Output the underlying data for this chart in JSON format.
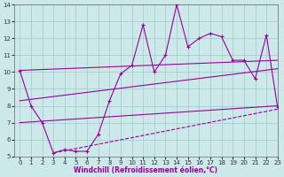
{
  "xlabel": "Windchill (Refroidissement éolien,°C)",
  "background_color": "#cce8e8",
  "line_color": "#990099",
  "xlim": [
    -0.5,
    23
  ],
  "ylim": [
    5,
    14
  ],
  "yticks": [
    5,
    6,
    7,
    8,
    9,
    10,
    11,
    12,
    13,
    14
  ],
  "xticks": [
    0,
    1,
    2,
    3,
    4,
    5,
    6,
    7,
    8,
    9,
    10,
    11,
    12,
    13,
    14,
    15,
    16,
    17,
    18,
    19,
    20,
    21,
    22,
    23
  ],
  "series1_x": [
    0,
    1,
    2,
    3,
    4,
    5,
    6,
    7,
    8,
    9,
    10,
    11,
    12,
    13,
    14,
    15,
    16,
    17,
    18,
    19,
    20,
    21,
    22,
    23
  ],
  "series1_y": [
    10.1,
    8.0,
    7.0,
    5.2,
    5.4,
    5.3,
    5.3,
    6.3,
    8.3,
    9.9,
    10.4,
    12.8,
    10.0,
    11.0,
    14.0,
    11.5,
    12.0,
    12.3,
    12.1,
    10.7,
    10.7,
    9.6,
    12.2,
    7.9
  ],
  "line1_x": [
    0,
    23
  ],
  "line1_y": [
    10.1,
    10.7
  ],
  "line2_x": [
    0,
    23
  ],
  "line2_y": [
    8.3,
    10.2
  ],
  "line3_x": [
    0,
    23
  ],
  "line3_y": [
    7.0,
    8.0
  ],
  "line4_x": [
    3,
    23
  ],
  "line4_y": [
    5.2,
    7.8
  ],
  "grid_color": "#99cccc",
  "xlabel_fontsize": 5.5,
  "tick_fontsize": 5
}
